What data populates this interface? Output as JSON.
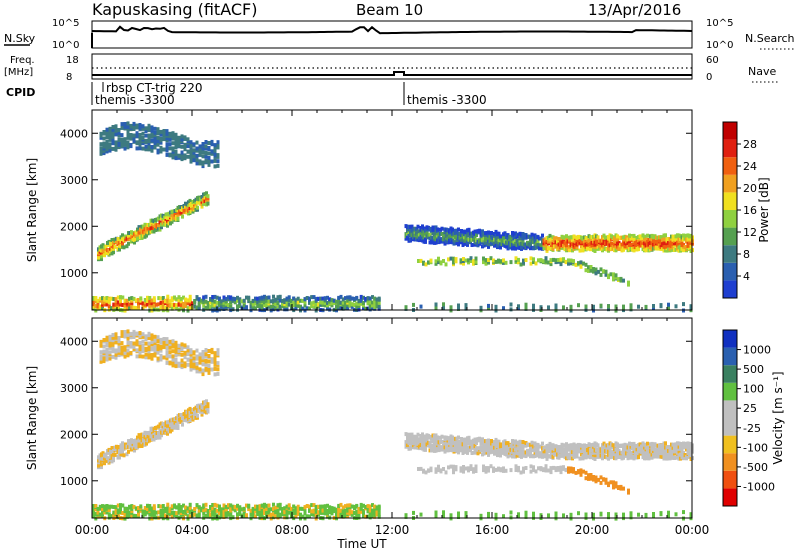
{
  "header": {
    "station": "Kapuskasing (fitACF)",
    "beam": "Beam 10",
    "date": "13/Apr/2016"
  },
  "noise_panel": {
    "left_label": "N.Sky",
    "right_label": "N.Search",
    "left_ticks": [
      "10^5",
      "10^0"
    ],
    "right_ticks": [
      "10^5",
      "10^0"
    ]
  },
  "freq_panel": {
    "left_label_1": "Freq.",
    "left_label_2": "[MHz]",
    "right_label": "Nave",
    "left_ticks": [
      "18",
      "8"
    ],
    "right_ticks": [
      "60",
      "0"
    ]
  },
  "cpid": {
    "label": "CPID",
    "entries": [
      {
        "text": "rbsp CT-trig 220",
        "start_hour": 0.6
      },
      {
        "text": "themis -3300",
        "start_hour": 0.15
      },
      {
        "text": "themis -3300",
        "start_hour": 12.5
      }
    ]
  },
  "colors": {
    "power_scale": [
      "#1f3fd0",
      "#2a5fb0",
      "#3d7a80",
      "#55a050",
      "#8fd040",
      "#f0e020",
      "#f0a020",
      "#f06010",
      "#e02010",
      "#c00000"
    ],
    "velocity_scale": [
      "#1030c0",
      "#2a60b0",
      "#3a8060",
      "#60c040",
      "#c0c0c0",
      "#c0c0c0",
      "#f0c020",
      "#f09020",
      "#f05010",
      "#e00000"
    ]
  },
  "chart_data": [
    {
      "type": "heatmap",
      "id": "power",
      "ylabel": "Slant Range [km]",
      "colorbar_label": "Power [dB]",
      "colorbar_ticks": [
        "28",
        "24",
        "20",
        "16",
        "12",
        "8",
        "4"
      ],
      "colorbar_range": [
        0,
        32
      ],
      "ylim": [
        200,
        4500
      ],
      "yticks": [
        "1000",
        "2000",
        "3000",
        "4000"
      ],
      "xlim": [
        0,
        24
      ],
      "xticks": [
        "00:00",
        "04:00",
        "08:00",
        "12:00",
        "16:00",
        "20:00",
        "00:00"
      ],
      "xlabel": "",
      "features": [
        {
          "name": "E-region band",
          "t0": 0,
          "t1": 12,
          "r0": 250,
          "r1": 500,
          "level": 18
        },
        {
          "name": "morning rising band",
          "t0": 0.2,
          "t1": 4.5,
          "r0": 1300,
          "r1": 2700,
          "level": 20
        },
        {
          "name": "upper morning band",
          "t0": 0.3,
          "t1": 5,
          "r0": 3600,
          "r1": 4300,
          "level": 6
        },
        {
          "name": "afternoon band",
          "t0": 12.5,
          "t1": 24,
          "r0": 1300,
          "r1": 2100,
          "level": 22
        }
      ]
    },
    {
      "type": "heatmap",
      "id": "velocity",
      "ylabel": "Slant Range [km]",
      "colorbar_label": "Velocity [m s⁻¹]",
      "colorbar_ticks": [
        "1000",
        "500",
        "100",
        "25",
        "-25",
        "-100",
        "-500",
        "-1000"
      ],
      "ylim": [
        200,
        4500
      ],
      "yticks": [
        "1000",
        "2000",
        "3000",
        "4000"
      ],
      "xlim": [
        0,
        24
      ],
      "xticks": [
        "00:00",
        "04:00",
        "08:00",
        "12:00",
        "16:00",
        "20:00",
        "00:00"
      ],
      "xlabel": "Time UT"
    }
  ]
}
